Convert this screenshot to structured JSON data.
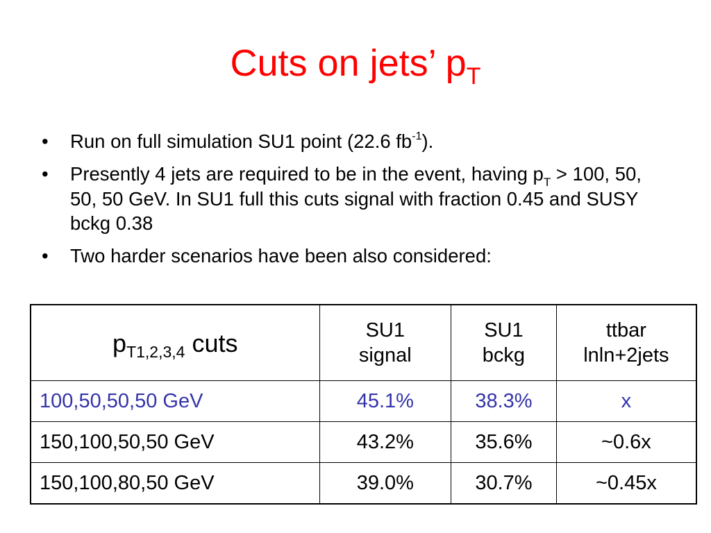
{
  "slide": {
    "title_main": "Cuts on jets’ p",
    "title_sub": "T"
  },
  "bullets": [
    {
      "marker": "•",
      "pre": "Run on full simulation SU1 point (22.6 fb",
      "sup": "-1",
      "post": ")."
    },
    {
      "marker": "•",
      "pre": "Presently 4 jets are required to be in the event, having p",
      "sub": "T",
      "post": " > 100, 50, 50, 50 GeV. In SU1 full this cuts signal with fraction 0.45 and SUSY bckg 0.38"
    },
    {
      "marker": "•",
      "text": "Two harder scenarios have been also considered:"
    }
  ],
  "table": {
    "header": {
      "col1_main": "p",
      "col1_sub": "T1,2,3,4",
      "col1_suffix": " cuts",
      "col2_line1": "SU1",
      "col2_line2": "signal",
      "col3_line1": "SU1",
      "col3_line2": "bckg",
      "col4_line1": "ttbar",
      "col4_line2": "lnln+2jets"
    },
    "rows": [
      {
        "cuts": "100,50,50,50 GeV",
        "signal": "45.1%",
        "bckg": "38.3%",
        "ttbar": "x"
      },
      {
        "cuts": "150,100,50,50 GeV",
        "signal": "43.2%",
        "bckg": "35.6%",
        "ttbar": "~0.6x"
      },
      {
        "cuts": "150,100,80,50 GeV",
        "signal": "39.0%",
        "bckg": "30.7%",
        "ttbar": "~0.45x"
      }
    ],
    "highlight_color": "#3333aa"
  },
  "colors": {
    "title": "#ff0000",
    "highlight_row": "#3333aa"
  }
}
